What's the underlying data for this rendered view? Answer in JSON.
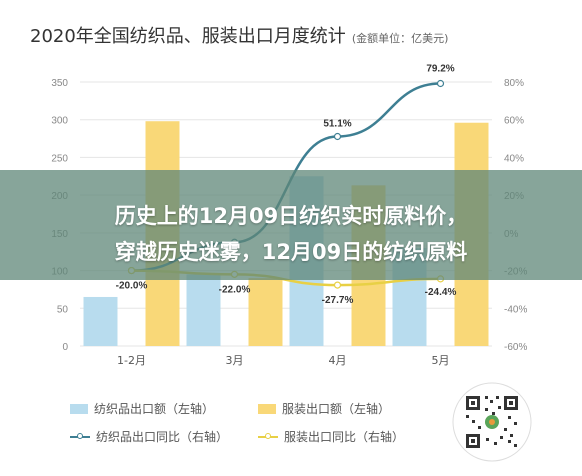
{
  "header": {
    "title": "2020年全国纺织品、服装出口月度统计",
    "unit": "(金额单位：亿美元)"
  },
  "overlay": {
    "line1": "历史上的12月09日纺织实时原料价，",
    "line2": "穿越历史迷雾，12月09日的纺织原料"
  },
  "colors": {
    "textile_bar": "#b8dcee",
    "apparel_bar": "#f9d878",
    "textile_line": "#3e7f93",
    "apparel_line": "#e8d045",
    "grid": "#e5e5e5",
    "axis_text": "#888888",
    "overlay": "#5f8778"
  },
  "chart_data": {
    "type": "bar+line",
    "categories": [
      "1-2月",
      "3月",
      "4月",
      "5月"
    ],
    "left_axis": {
      "ticks": [
        "0",
        "50",
        "100",
        "150",
        "200",
        "250",
        "300",
        "350"
      ],
      "ylim": [
        0,
        350
      ]
    },
    "right_axis": {
      "ticks": [
        "-60%",
        "-40%",
        "-20%",
        "0%",
        "20%",
        "40%",
        "60%",
        "80%"
      ],
      "ylim": [
        -60,
        80
      ]
    },
    "series": [
      {
        "name": "纺织品出口额（左轴）",
        "kind": "bar",
        "axis": "left",
        "values": [
          65,
          95,
          225,
          130
        ]
      },
      {
        "name": "服装出口额（左轴）",
        "kind": "bar",
        "axis": "left",
        "values": [
          298,
          90,
          213,
          296
        ]
      },
      {
        "name": "纺织品出口同比（右轴）",
        "kind": "line",
        "axis": "right",
        "values": [
          -20.0,
          -5.0,
          51.1,
          79.2
        ]
      },
      {
        "name": "服装出口同比（右轴）",
        "kind": "line",
        "axis": "right",
        "values": [
          -20.0,
          -22.0,
          -27.7,
          -24.4
        ]
      }
    ],
    "annotations": [
      "-20.0%",
      "-22.0%",
      "51.1%",
      "-27.7%",
      "79.2%",
      "-24.4%"
    ]
  },
  "legend": {
    "items": [
      "纺织品出口额（左轴）",
      "服装出口额（左轴）",
      "纺织品出口同比（右轴）",
      "服装出口同比（右轴）"
    ]
  }
}
